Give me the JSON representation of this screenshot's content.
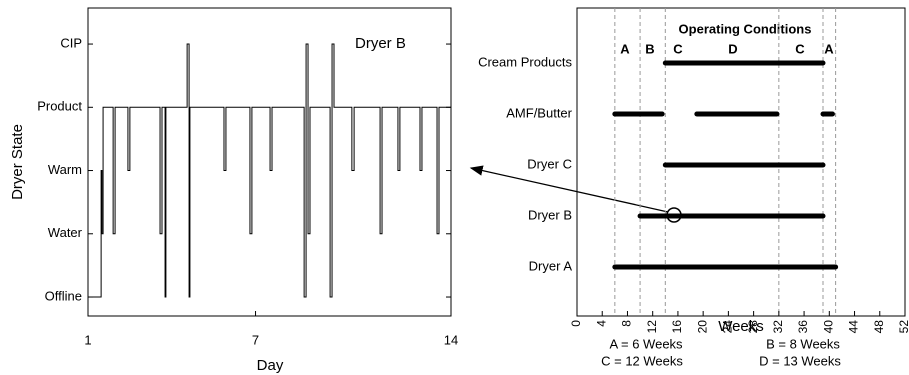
{
  "chart_data": [
    {
      "type": "step",
      "title": "Dryer B",
      "x_label": "Day",
      "y_label": "Dryer State",
      "color": "#000000",
      "xlim": [
        1,
        14
      ],
      "xticks": [
        1,
        7,
        14
      ],
      "ylim": [
        -0.3,
        4.57
      ],
      "yticks": [
        {
          "value": 0,
          "label": "Offline"
        },
        {
          "value": 1,
          "label": "Water"
        },
        {
          "value": 2,
          "label": "Warm"
        },
        {
          "value": 3,
          "label": "Product"
        },
        {
          "value": 4,
          "label": "CIP"
        }
      ],
      "x": [
        1.0,
        1.47,
        1.5,
        1.54,
        1.9,
        1.97,
        2.43,
        2.5,
        3.58,
        3.65,
        3.76,
        3.79,
        4.55,
        4.62,
        4.65,
        5.87,
        5.94,
        6.8,
        6.87,
        7.52,
        7.59,
        8.74,
        8.81,
        8.88,
        8.95,
        9.67,
        9.74,
        9.81,
        10.45,
        10.53,
        11.46,
        11.53,
        12.1,
        12.17,
        12.89,
        12.96,
        13.5,
        13.57,
        14.0
      ],
      "values": [
        0,
        2,
        1,
        3,
        1,
        3,
        2,
        3,
        1,
        3,
        0,
        3,
        4,
        0,
        3,
        2,
        3,
        1,
        3,
        2,
        3,
        0,
        4,
        1,
        3,
        0,
        4,
        3,
        2,
        3,
        1,
        3,
        2,
        3,
        2,
        3,
        1,
        3,
        3
      ]
    },
    {
      "type": "gantt",
      "title": "Operating Conditions",
      "x_label": "Weeks",
      "color": "#000000",
      "xlim": [
        0,
        52
      ],
      "xticks": [
        0,
        4,
        8,
        12,
        16,
        20,
        24,
        28,
        32,
        36,
        40,
        44,
        48,
        52
      ],
      "categories": [
        "Dryer A",
        "Dryer B",
        "Dryer C",
        "AMF/Butter",
        "Cream Products"
      ],
      "spans": [
        [
          [
            6,
            41
          ]
        ],
        [
          [
            10,
            39
          ]
        ],
        [
          [
            14,
            39
          ]
        ],
        [
          [
            6,
            13.5
          ],
          [
            19,
            31.7
          ],
          [
            39,
            40.5
          ]
        ],
        [
          [
            14,
            39
          ]
        ]
      ],
      "period_boundaries": [
        6,
        10,
        14,
        32,
        39,
        41
      ],
      "period_labels": [
        "A",
        "B",
        "C",
        "D",
        "C",
        "A"
      ],
      "notes": [
        "A = 6 Weeks",
        "B = 8 Weeks",
        "C = 12 Weeks",
        "D = 13 Weeks"
      ]
    }
  ]
}
